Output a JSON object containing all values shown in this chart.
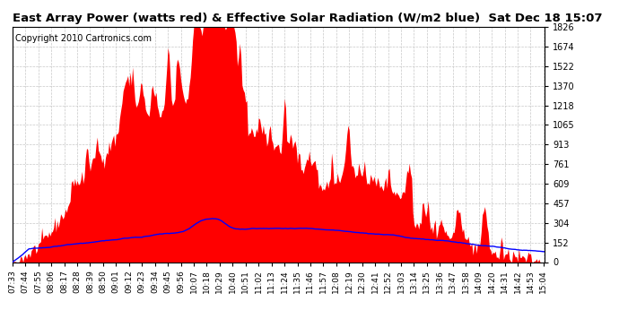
{
  "title": "East Array Power (watts red) & Effective Solar Radiation (W/m2 blue)  Sat Dec 18 15:07",
  "copyright": "Copyright 2010 Cartronics.com",
  "yticks": [
    0.0,
    152.2,
    304.4,
    456.6,
    608.8,
    761.0,
    913.2,
    1065.4,
    1217.6,
    1369.9,
    1522.1,
    1674.3,
    1826.5
  ],
  "ymax": 1826.5,
  "ymin": 0.0,
  "red_fill_color": "#ff0000",
  "blue_line_color": "#0000ff",
  "background_color": "#ffffff",
  "grid_color": "#c8c8c8",
  "title_fontsize": 9.5,
  "copyright_fontsize": 7
}
